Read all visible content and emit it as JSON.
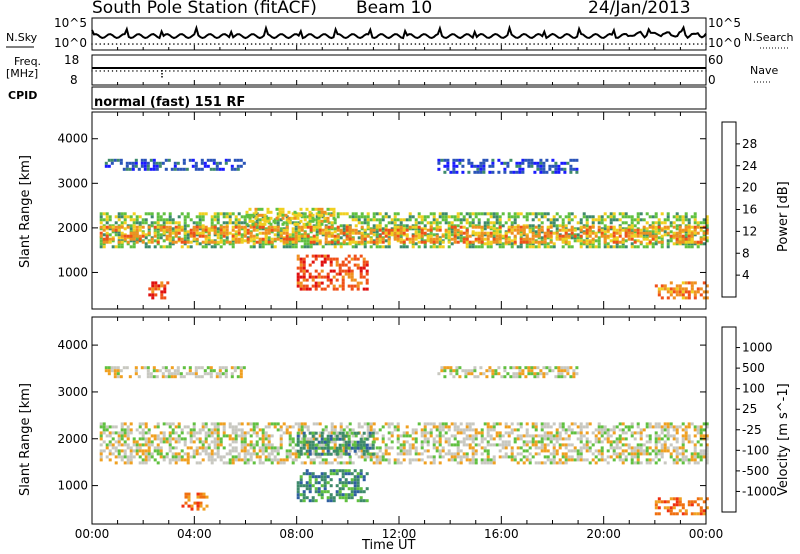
{
  "header": {
    "station": "South Pole Station (fitACF)",
    "beam": "Beam 10",
    "date": "24/Jan/2013"
  },
  "top_panel": {
    "nsky_label": "N.Sky",
    "nsearch_label": "N.Search",
    "freq_label_1": "Freq.",
    "freq_label_2": "[MHz]",
    "nave_label": "Nave",
    "cpid_label": "CPID",
    "cpid_text": "normal (fast) 151 RF",
    "noise_ticks": [
      "10^5",
      "10^0"
    ],
    "freq_ticks": [
      "18",
      "8"
    ],
    "nave_ticks": [
      "60",
      "0"
    ]
  },
  "chart_data": [
    {
      "type": "heatmap",
      "title": "",
      "xlabel": "Time UT",
      "ylabel": "Slant Range [km]",
      "x_ticks": [
        "00:00",
        "04:00",
        "08:00",
        "12:00",
        "16:00",
        "20:00",
        "00:00"
      ],
      "x_range_hours": [
        0,
        24
      ],
      "ylim": [
        180,
        4600
      ],
      "y_ticks": [
        1000,
        2000,
        3000,
        4000
      ],
      "colorbar": {
        "label": "Power [dB]",
        "ticks": [
          "4",
          "8",
          "12",
          "16",
          "20",
          "24",
          "28"
        ],
        "colors": [
          "#1a1aff",
          "#2a54b8",
          "#3d8a6a",
          "#60c040",
          "#f0d020",
          "#f09020",
          "#f05018",
          "#e01010"
        ]
      },
      "regions": [
        {
          "t0": 0.3,
          "t1": 24,
          "r0": 1600,
          "r1": 2350,
          "level": 3
        },
        {
          "t0": 0.3,
          "t1": 24,
          "r0": 1700,
          "r1": 2050,
          "level": 5
        },
        {
          "t0": 0.5,
          "t1": 6,
          "r0": 3300,
          "r1": 3550,
          "level": 1
        },
        {
          "t0": 13.5,
          "t1": 19,
          "r0": 3250,
          "r1": 3550,
          "level": 1
        },
        {
          "t0": 8,
          "t1": 10.8,
          "r0": 600,
          "r1": 1400,
          "level": 6
        },
        {
          "t0": 2.2,
          "t1": 3,
          "r0": 450,
          "r1": 800,
          "level": 6
        },
        {
          "t0": 22,
          "t1": 24,
          "r0": 450,
          "r1": 800,
          "level": 5
        },
        {
          "t0": 6,
          "t1": 9.5,
          "r0": 2050,
          "r1": 2450,
          "level": 4
        }
      ]
    },
    {
      "type": "heatmap",
      "title": "",
      "xlabel": "Time UT",
      "ylabel": "Slant Range [km]",
      "x_ticks": [
        "00:00",
        "04:00",
        "08:00",
        "12:00",
        "16:00",
        "20:00",
        "00:00"
      ],
      "x_range_hours": [
        0,
        24
      ],
      "ylim": [
        180,
        4600
      ],
      "y_ticks": [
        1000,
        2000,
        3000,
        4000
      ],
      "colorbar": {
        "label": "Velocity [m s^-1]",
        "ticks": [
          "1000",
          "500",
          "100",
          "25",
          "-25",
          "-100",
          "-500",
          "-1000"
        ],
        "colors": [
          "#1a3ab0",
          "#2f5fa0",
          "#3d8a6a",
          "#60c040",
          "#c8c8c0",
          "#f0a020",
          "#f07010",
          "#f03010",
          "#e01010"
        ]
      },
      "regions": [
        {
          "t0": 0.3,
          "t1": 24,
          "r0": 1500,
          "r1": 2350,
          "level": 4
        },
        {
          "t0": 8,
          "t1": 10.8,
          "r0": 700,
          "r1": 1350,
          "level": 2
        },
        {
          "t0": 8,
          "t1": 11,
          "r0": 1650,
          "r1": 2150,
          "level": 2
        },
        {
          "t0": 3.5,
          "t1": 4.5,
          "r0": 500,
          "r1": 850,
          "level": 6
        },
        {
          "t0": 22,
          "t1": 24,
          "r0": 400,
          "r1": 750,
          "level": 6
        },
        {
          "t0": 0.5,
          "t1": 6,
          "r0": 3300,
          "r1": 3550,
          "level": 4
        },
        {
          "t0": 13.5,
          "t1": 19,
          "r0": 3300,
          "r1": 3550,
          "level": 4
        }
      ]
    }
  ]
}
